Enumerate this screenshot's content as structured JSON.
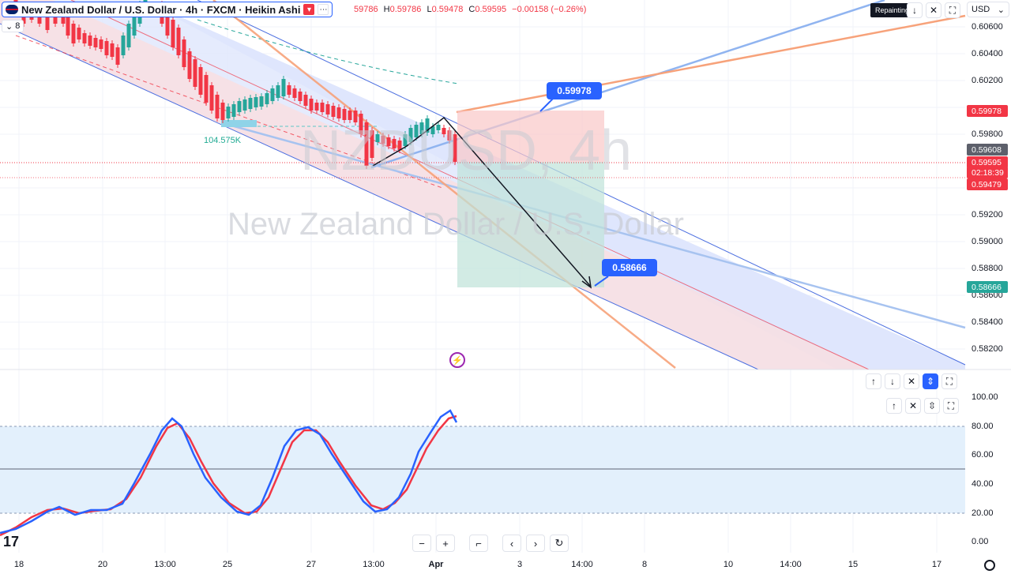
{
  "header": {
    "title": "New Zealand Dollar / U.S. Dollar · 4h · FXCM · Heikin Ashi",
    "ohlc": {
      "o_value": "59786",
      "h_label": "H",
      "h_value": "0.59786",
      "l_label": "L",
      "l_value": "0.59478",
      "c_label": "C",
      "c_value": "0.59595",
      "change": "−0.00158 (−0.26%)"
    },
    "settings_count": "8",
    "currency": "USD",
    "repaint_label": "Repainting"
  },
  "watermark": {
    "symbol": "NZDUSD, 4h",
    "name": "New Zealand Dollar / U.S. Dollar"
  },
  "volume_label": "104.575K",
  "y_axis": {
    "labels": [
      "0.60600",
      "0.60400",
      "0.60200",
      "0.59800",
      "0.59200",
      "0.59000",
      "0.58800",
      "0.58600",
      "0.58400",
      "0.58200"
    ],
    "tags": {
      "target_high": "0.59978",
      "prev": "0.59608",
      "close": "0.59595",
      "countdown": "02:18:39",
      "low": "0.59479",
      "target_low": "0.58666"
    }
  },
  "callouts": {
    "upper": "0.59978",
    "lower": "0.58666"
  },
  "osc_axis": [
    "100.00",
    "80.00",
    "60.00",
    "40.00",
    "20.00",
    "0.00"
  ],
  "x_axis": [
    "18",
    "20",
    "13:00",
    "25",
    "27",
    "13:00",
    "Apr",
    "3",
    "14:00",
    "8",
    "10",
    "14:00",
    "15",
    "17"
  ],
  "colors": {
    "up": "#26a69a",
    "down": "#f23645",
    "accent": "#2962ff",
    "orange": "#f7a27a",
    "channel_fill": "#d5defa",
    "stoch_k": "#2962ff",
    "stoch_d": "#f23645"
  },
  "icons": [
    "settings-icon",
    "eye-icon",
    "arrow-up-icon",
    "arrow-down-icon",
    "close-icon",
    "collapse-icon",
    "maximize-icon",
    "zoom-out-icon",
    "zoom-in-icon",
    "reset-icon",
    "scroll-left-icon",
    "scroll-right-icon",
    "refresh-icon",
    "bolt-icon",
    "gear-icon"
  ]
}
